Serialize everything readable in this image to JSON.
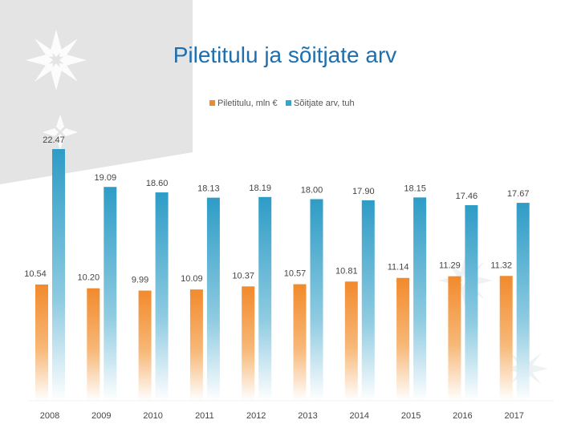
{
  "chart_data": {
    "type": "bar",
    "title": "Piletitulu ja sõitjate arv",
    "categories": [
      "2008",
      "2009",
      "2010",
      "2011",
      "2012",
      "2013",
      "2014",
      "2015",
      "2016",
      "2017"
    ],
    "series": [
      {
        "name": "Piletitulu, mln €",
        "values": [
          10.54,
          10.2,
          9.99,
          10.09,
          10.37,
          10.57,
          10.81,
          11.14,
          11.29,
          11.32
        ],
        "labels": [
          "10.54",
          "10.20",
          "9.99",
          "10.09",
          "10.37",
          "10.57",
          "10.81",
          "11.14",
          "11.29",
          "11.32"
        ],
        "color": "#f08a2e"
      },
      {
        "name": "Sõitjate arv, tuh",
        "values": [
          22.47,
          19.09,
          18.6,
          18.13,
          18.19,
          18.0,
          17.9,
          18.15,
          17.46,
          17.67
        ],
        "labels": [
          "22.47",
          "19.09",
          "18.60",
          "18.13",
          "18.19",
          "18.00",
          "17.90",
          "18.15",
          "17.46",
          "17.67"
        ],
        "color": "#3aa3c9"
      }
    ],
    "legend_position": "top-center",
    "grid": false,
    "xlabel": "",
    "ylabel": ""
  }
}
